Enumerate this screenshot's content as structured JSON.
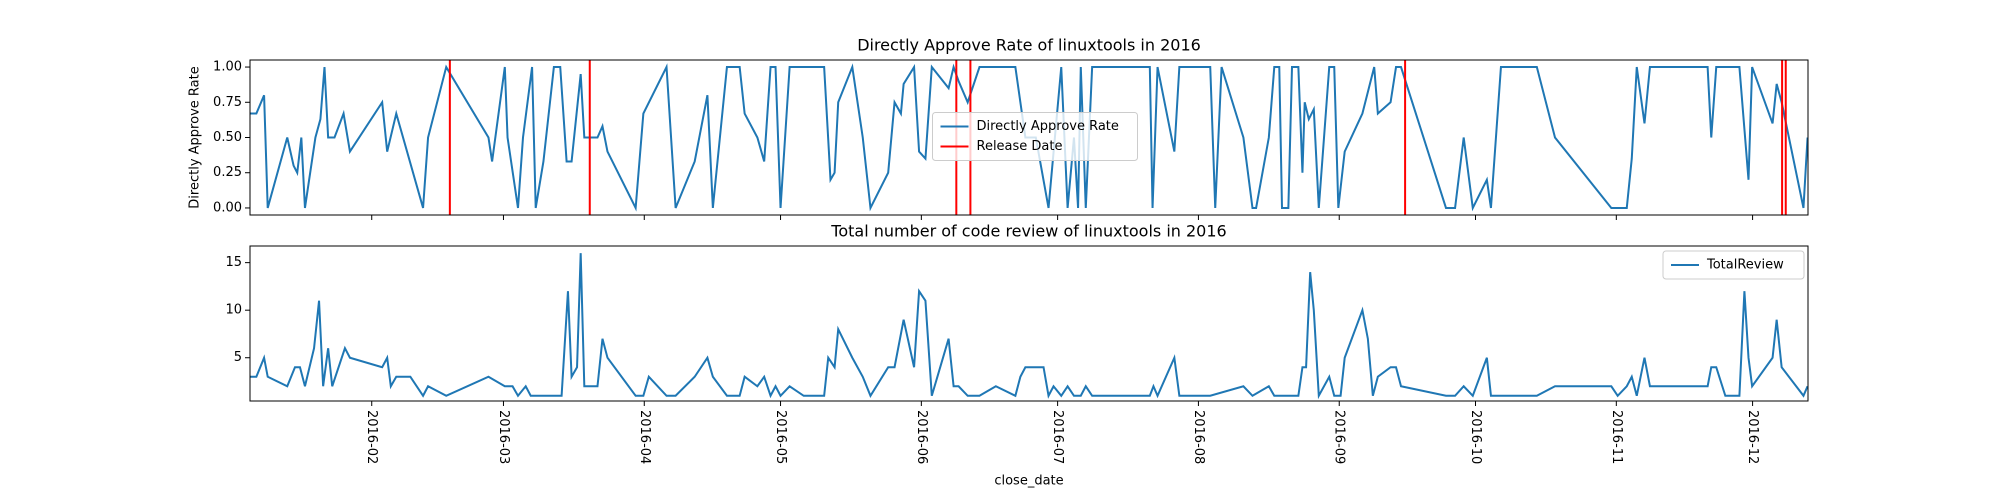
{
  "chart_data": [
    {
      "type": "line",
      "title": "Directly Approve Rate of linuxtools in 2016",
      "ylabel": "Directly Approve Rate",
      "xlim": [
        4.2,
        347.2
      ],
      "ylim": [
        -0.05,
        1.05
      ],
      "yticks": [
        {
          "value": 0,
          "label": "0.00"
        },
        {
          "value": 0.25,
          "label": "0.25"
        },
        {
          "value": 0.5,
          "label": "0.50"
        },
        {
          "value": 0.75,
          "label": "0.75"
        },
        {
          "value": 1,
          "label": "1.00"
        }
      ],
      "legend": "center",
      "series": [
        {
          "name": "Directly Approve Rate",
          "color": "#1f77b4",
          "x": [
            4.2,
            5.6,
            7.3,
            8.1,
            12.4,
            13.8,
            14.6,
            15.5,
            16.3,
            18.6,
            19.7,
            20.6,
            21.4,
            22.8,
            24.8,
            26.2,
            33.3,
            34.4,
            36.4,
            42.3,
            43.4,
            47.4,
            56.7,
            57.5,
            60.3,
            60.9,
            63.2,
            64.3,
            66.3,
            67.1,
            68.8,
            71.1,
            72.5,
            73.9,
            75.0,
            77.0,
            77.8,
            80.7,
            81.8,
            82.9,
            89.1,
            90.8,
            95.9,
            97.9,
            102.1,
            104.9,
            106.1,
            109.2,
            112.0,
            113.1,
            115.9,
            117.4,
            118.8,
            119.9,
            121.0,
            123.0,
            130.6,
            132.0,
            132.9,
            133.7,
            136.8,
            139.1,
            140.8,
            144.7,
            146.1,
            147.5,
            148.1,
            150.4,
            151.5,
            152.9,
            154.3,
            158.0,
            159.1,
            160.2,
            162.2,
            164.8,
            172.7,
            173.8,
            174.9,
            177.2,
            180.0,
            182.8,
            184.2,
            185.6,
            186.5,
            187.1,
            188.2,
            189.6,
            202.3,
            202.9,
            204.0,
            207.7,
            208.8,
            215.6,
            216.7,
            218.1,
            222.9,
            224.9,
            225.7,
            228.5,
            229.7,
            230.8,
            231.4,
            232.8,
            233.6,
            235.0,
            235.9,
            236.4,
            237.3,
            238.4,
            239.5,
            241.8,
            242.9,
            243.8,
            245.2,
            249.1,
            251.7,
            252.5,
            255.3,
            256.5,
            257.6,
            267.5,
            269.5,
            271.4,
            273.4,
            276.5,
            277.4,
            279.6,
            287.5,
            291.5,
            303.9,
            307.3,
            308.4,
            309.5,
            311.2,
            312.4,
            325.1,
            325.9,
            327.0,
            332.1,
            334.1,
            334.9,
            339.4,
            340.3,
            341.4,
            346.2,
            347.1
          ],
          "values": [
            0.67,
            0.67,
            0.8,
            0,
            0.5,
            0.3,
            0.25,
            0.5,
            0,
            0.5,
            0.63,
            1,
            0.5,
            0.5,
            0.67,
            0.4,
            0.75,
            0.4,
            0.67,
            0,
            0.5,
            1,
            0.5,
            0.33,
            1,
            0.5,
            0,
            0.5,
            1,
            0,
            0.33,
            1,
            1,
            0.33,
            0.33,
            0.95,
            0.5,
            0.5,
            0.58,
            0.4,
            0,
            0.67,
            1,
            0,
            0.33,
            0.8,
            0,
            1,
            1,
            0.67,
            0.5,
            0.33,
            1,
            1,
            0,
            1,
            1,
            0.2,
            0.25,
            0.75,
            1,
            0.5,
            0,
            0.25,
            0.75,
            0.67,
            0.88,
            1,
            0.4,
            0.35,
            1,
            0.85,
            1,
            0.9,
            0.75,
            1,
            1,
            0.75,
            0.5,
            0.5,
            0,
            1,
            0,
            0.5,
            0,
            1,
            0,
            1,
            1,
            0,
            1,
            0.4,
            1,
            1,
            0,
            1,
            0.5,
            0,
            0,
            0.5,
            1,
            1,
            0,
            0,
            1,
            1,
            0.25,
            0.75,
            0.63,
            0.7,
            0,
            1,
            1,
            0,
            0.4,
            0.67,
            1,
            0.67,
            0.75,
            1,
            1,
            0,
            0,
            0.5,
            0,
            0.2,
            0,
            1,
            1,
            0.5,
            0,
            0,
            0.35,
            1,
            0.6,
            1,
            1,
            0.5,
            1,
            1,
            0.2,
            1,
            0.6,
            0.88,
            0.75,
            0,
            0.5
          ]
        }
      ],
      "release_dates": {
        "name": "Release Date",
        "color": "#ff0000",
        "x": [
          48.2,
          79.0,
          159.7,
          162.8,
          258.5,
          341.5,
          342.3
        ]
      }
    },
    {
      "type": "line",
      "title": "Total number of code review of linuxtools in 2016",
      "xlabel": "close_date",
      "xlim": [
        4.2,
        347.2
      ],
      "ylim": [
        0.45,
        16.75
      ],
      "yticks": [
        5,
        10,
        15
      ],
      "xticks": [
        {
          "value": 31,
          "label": "2016-02"
        },
        {
          "value": 60,
          "label": "2016-03"
        },
        {
          "value": 91,
          "label": "2016-04"
        },
        {
          "value": 121,
          "label": "2016-05"
        },
        {
          "value": 152,
          "label": "2016-06"
        },
        {
          "value": 182,
          "label": "2016-07"
        },
        {
          "value": 213,
          "label": "2016-08"
        },
        {
          "value": 244,
          "label": "2016-09"
        },
        {
          "value": 274,
          "label": "2016-10"
        },
        {
          "value": 305,
          "label": "2016-11"
        },
        {
          "value": 335,
          "label": "2016-12"
        }
      ],
      "legend": "upper right",
      "series": [
        {
          "name": "TotalReview",
          "color": "#1f77b4",
          "x": [
            4.2,
            5.6,
            7.3,
            8.1,
            12.4,
            14.1,
            15.2,
            16.3,
            18.3,
            19.4,
            20.3,
            21.4,
            22.3,
            25.1,
            26.2,
            33.3,
            34.4,
            35.2,
            36.4,
            39.5,
            42.3,
            43.4,
            47.4,
            56.7,
            60.3,
            62.0,
            63.2,
            64.9,
            66.0,
            72.8,
            74.2,
            75.0,
            76.2,
            77.0,
            77.8,
            80.7,
            81.8,
            82.9,
            89.1,
            90.8,
            92.0,
            95.9,
            97.9,
            102.1,
            104.9,
            106.1,
            109.2,
            112.0,
            113.1,
            115.9,
            117.4,
            118.8,
            119.9,
            121.0,
            123.0,
            126.1,
            130.6,
            131.5,
            132.9,
            133.7,
            136.8,
            139.1,
            140.8,
            144.7,
            146.1,
            148.1,
            150.4,
            151.5,
            152.9,
            154.3,
            158.0,
            159.1,
            160.2,
            162.2,
            164.8,
            168.4,
            172.7,
            173.8,
            174.9,
            178.9,
            180.0,
            181.1,
            182.8,
            184.2,
            185.6,
            187.1,
            188.2,
            189.6,
            193.0,
            202.3,
            203.1,
            204.0,
            207.7,
            208.8,
            215.6,
            222.9,
            224.9,
            228.5,
            229.7,
            235.0,
            235.9,
            236.7,
            237.6,
            238.4,
            239.5,
            241.8,
            242.9,
            244.3,
            245.2,
            249.1,
            250.3,
            251.4,
            252.5,
            255.3,
            256.5,
            257.6,
            267.5,
            269.5,
            271.4,
            273.4,
            276.5,
            277.4,
            287.5,
            291.5,
            303.9,
            305.3,
            307.3,
            308.4,
            309.5,
            311.2,
            312.4,
            325.1,
            325.9,
            327.0,
            329.0,
            332.1,
            333.2,
            334.1,
            334.9,
            339.4,
            340.3,
            341.4,
            346.2,
            347.1
          ],
          "values": [
            3,
            3,
            5,
            3,
            2,
            4,
            4,
            2,
            6,
            11,
            2,
            6,
            2,
            6,
            5,
            4,
            5,
            2,
            3,
            3,
            1,
            2,
            1,
            3,
            2,
            2,
            1,
            2,
            1,
            1,
            12,
            3,
            4,
            16,
            2,
            2,
            7,
            5,
            1,
            1,
            3,
            1,
            1,
            3,
            5,
            3,
            1,
            1,
            3,
            2,
            3,
            1,
            2,
            1,
            2,
            1,
            1,
            5,
            4,
            8,
            5,
            3,
            1,
            4,
            4,
            9,
            4,
            12,
            11,
            1,
            7,
            2,
            2,
            1,
            1,
            2,
            1,
            3,
            4,
            4,
            1,
            2,
            1,
            2,
            1,
            1,
            2,
            1,
            1,
            1,
            2,
            1,
            5,
            1,
            1,
            2,
            1,
            2,
            1,
            1,
            4,
            4,
            14,
            10,
            1,
            3,
            1,
            1,
            5,
            10,
            7,
            1,
            3,
            4,
            4,
            2,
            1,
            1,
            2,
            1,
            5,
            1,
            1,
            2,
            2,
            1,
            2,
            3,
            1,
            5,
            2,
            2,
            4,
            4,
            1,
            1,
            12,
            5,
            2,
            5,
            9,
            4,
            1,
            2
          ]
        }
      ]
    }
  ]
}
